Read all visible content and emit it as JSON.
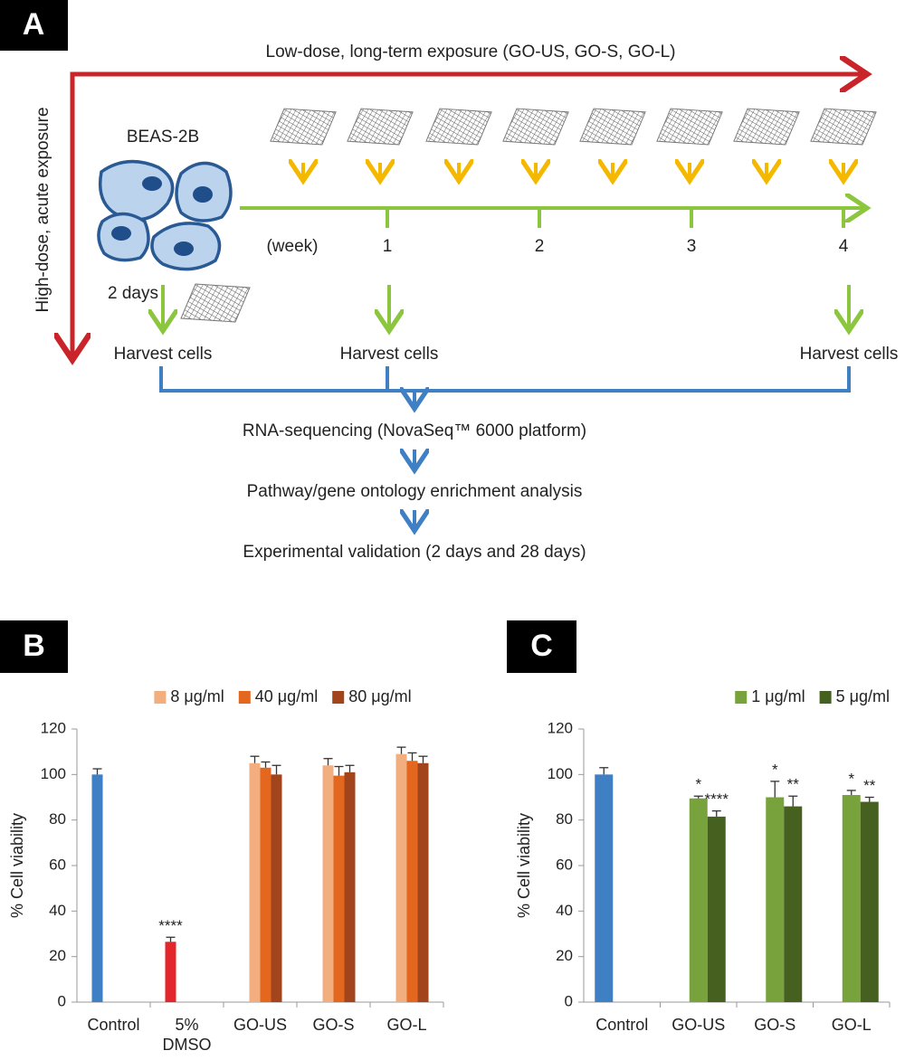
{
  "diagram": {
    "panel_label": "A",
    "top_arrow_label": "Low-dose, long-term exposure (GO-US, GO-S, GO-L)",
    "side_arrow_label": "High-dose, acute exposure",
    "cell_label": "BEAS-2B",
    "timeline_unit": "(week)",
    "weeks": [
      "1",
      "2",
      "3",
      "4"
    ],
    "acute_time": "2 days",
    "harvest": [
      "Harvest cells",
      "Harvest cells",
      "Harvest cells"
    ],
    "steps": [
      "RNA-sequencing (NovaSeq™ 6000 platform)",
      "Pathway/gene ontology enrichment analysis",
      "Experimental validation (2 days and 28 days)"
    ]
  },
  "chart_data": [
    {
      "type": "bar",
      "panel_label": "B",
      "y_label": "% Cell viability",
      "categories": [
        "Control",
        "5%\nDMSO",
        "GO-US",
        "GO-S",
        "GO-L"
      ],
      "ylim": [
        0,
        120
      ],
      "yticks": [
        0,
        20,
        40,
        60,
        80,
        100,
        120
      ],
      "legend": "top",
      "series": [
        {
          "colors": [
            "#3f7fc4",
            "#e3262b",
            null,
            null,
            null
          ],
          "values": [
            100,
            26.5,
            null,
            null,
            null
          ],
          "errors": [
            2.5,
            2,
            null,
            null,
            null
          ],
          "significance": [
            null,
            "****",
            null,
            null,
            null
          ]
        },
        {
          "name": "8 μg/ml",
          "color": "#f2ae7f",
          "values": [
            null,
            null,
            105,
            104,
            109
          ],
          "errors": [
            null,
            null,
            3,
            3,
            3
          ],
          "significance": [
            null,
            null,
            null,
            null,
            null
          ]
        },
        {
          "name": "40 μg/ml",
          "color": "#e3671e",
          "values": [
            null,
            null,
            103,
            99.5,
            106
          ],
          "errors": [
            null,
            null,
            2.5,
            4,
            3.5
          ],
          "significance": [
            null,
            null,
            null,
            null,
            null
          ]
        },
        {
          "name": "80 μg/ml",
          "color": "#a2451c",
          "values": [
            null,
            null,
            100,
            101,
            105
          ],
          "errors": [
            null,
            null,
            4,
            3,
            3
          ],
          "significance": [
            null,
            null,
            null,
            null,
            null
          ]
        }
      ]
    },
    {
      "type": "bar",
      "panel_label": "C",
      "y_label": "% Cell viability",
      "categories": [
        "Control",
        "GO-US",
        "GO-S",
        "GO-L"
      ],
      "ylim": [
        0,
        120
      ],
      "yticks": [
        0,
        20,
        40,
        60,
        80,
        100,
        120
      ],
      "legend": "top-right",
      "series": [
        {
          "colors": [
            "#3f7fc4",
            null,
            null,
            null
          ],
          "values": [
            100,
            null,
            null,
            null
          ],
          "errors": [
            3,
            null,
            null,
            null
          ],
          "significance": [
            null,
            null,
            null,
            null
          ]
        },
        {
          "name": "1 μg/ml",
          "color": "#78a33c",
          "values": [
            null,
            89.5,
            90,
            91
          ],
          "errors": [
            null,
            1,
            7,
            2
          ],
          "significance": [
            null,
            "*",
            "*",
            "*"
          ]
        },
        {
          "name": "5 μg/ml",
          "color": "#46601f",
          "values": [
            null,
            81.5,
            86,
            88
          ],
          "errors": [
            null,
            2.5,
            4.5,
            2
          ],
          "significance": [
            null,
            "****",
            "**",
            "**"
          ]
        }
      ]
    }
  ]
}
